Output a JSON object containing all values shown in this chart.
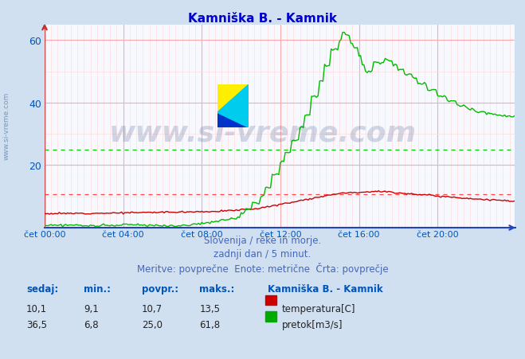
{
  "title": "Kamniška B. - Kamnik",
  "title_color": "#0000cc",
  "bg_color": "#d0e0f0",
  "plot_bg_color": "#f8f8ff",
  "grid_color_major": "#ffaaaa",
  "grid_color_minor": "#ffdddd",
  "axis_label_color": "#0055bb",
  "xtick_labels": [
    "čet 00:00",
    "čet 04:00",
    "čet 08:00",
    "čet 12:00",
    "čet 16:00",
    "čet 20:00"
  ],
  "xtick_positions": [
    0,
    48,
    96,
    144,
    192,
    240
  ],
  "watermark_text": "www.si-vreme.com",
  "watermark_color": "#1a3a6a",
  "watermark_alpha": 0.18,
  "footer_lines": [
    "Slovenija / reke in morje.",
    "zadnji dan / 5 minut.",
    "Meritve: povprečne  Enote: metrične  Črta: povprečje"
  ],
  "footer_color": "#4466bb",
  "legend_title": "Kamniška B. - Kamnik",
  "legend_items": [
    {
      "label": "temperatura[C]",
      "color": "#cc0000"
    },
    {
      "label": "pretok[m3/s]",
      "color": "#00aa00"
    }
  ],
  "table_headers": [
    "sedaj:",
    "min.:",
    "povpr.:",
    "maks.:"
  ],
  "table_data": [
    [
      "10,1",
      "9,1",
      "10,7",
      "13,5"
    ],
    [
      "36,5",
      "6,8",
      "25,0",
      "61,8"
    ]
  ],
  "avg_temp": 10.7,
  "avg_flow": 25.0,
  "temp_color": "#cc0000",
  "flow_color": "#00bb00",
  "avg_line_color_temp": "#ff4444",
  "avg_line_color_flow": "#00cc00",
  "sidebar_color": "#5577aa",
  "ylim": [
    0,
    65
  ],
  "xlim": [
    0,
    287
  ]
}
